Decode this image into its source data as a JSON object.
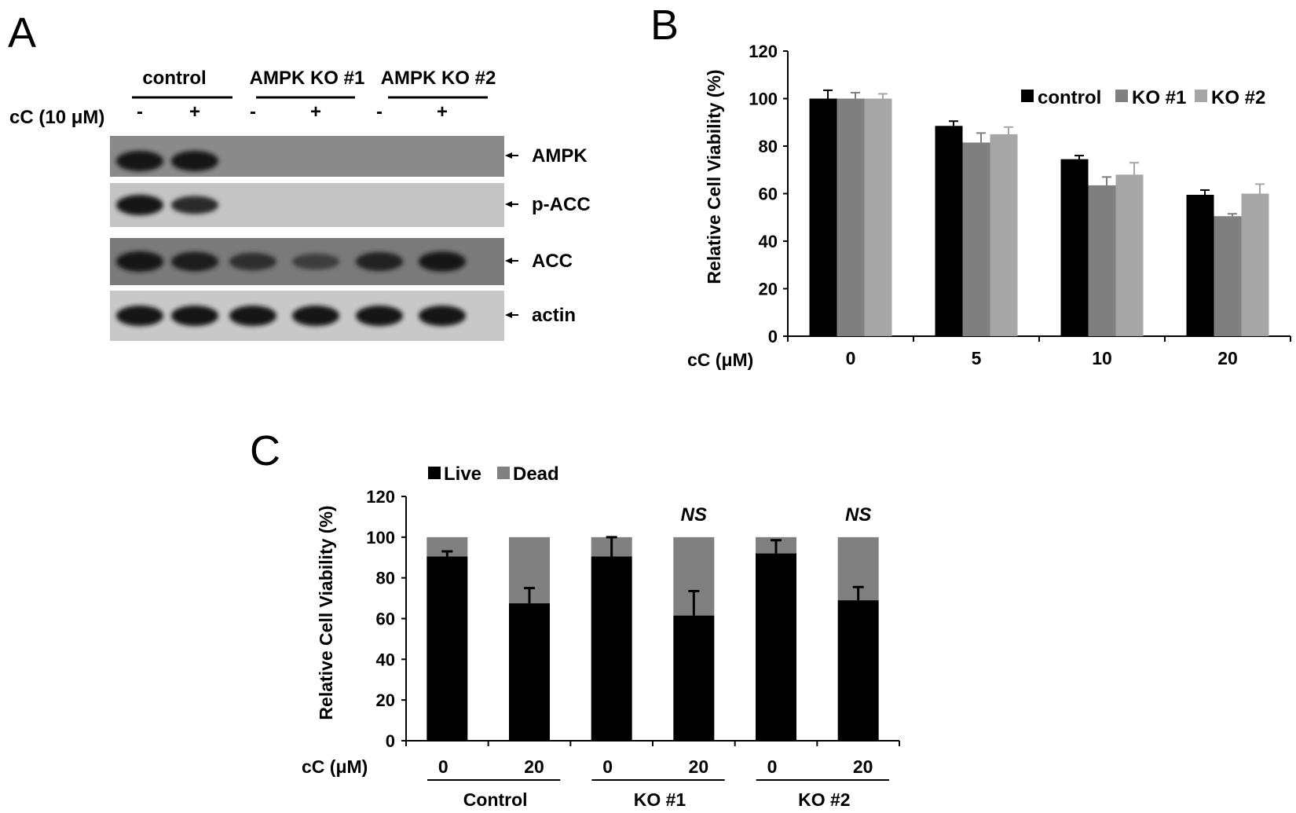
{
  "panels": {
    "a": "A",
    "b": "B",
    "c": "C"
  },
  "panel_a": {
    "groups": [
      "control",
      "AMPK KO #1",
      "AMPK KO #2"
    ],
    "treatment_label": "cC (10 μM)",
    "lane_signs": [
      "-",
      "+",
      "-",
      "+",
      "-",
      "+"
    ],
    "blots": [
      {
        "label": "AMPK",
        "bg": "#8a8a8a",
        "intensities": [
          1.0,
          1.0,
          0,
          0,
          0,
          0
        ]
      },
      {
        "label": "p-ACC",
        "bg": "#c4c4c4",
        "intensities": [
          1.0,
          0.75,
          0,
          0,
          0,
          0
        ]
      },
      {
        "label": "ACC",
        "bg": "#7a7a7a",
        "intensities": [
          1.0,
          0.9,
          0.7,
          0.55,
          0.85,
          0.95
        ]
      },
      {
        "label": "actin",
        "bg": "#c8c8c8",
        "intensities": [
          1.0,
          1.0,
          1.0,
          1.0,
          1.0,
          1.0
        ]
      }
    ]
  },
  "chart_data": [
    {
      "type": "bar",
      "categories": [
        "0",
        "5",
        "10",
        "20"
      ],
      "series": [
        {
          "name": "control",
          "color": "#000000",
          "values": [
            100,
            88.5,
            74.5,
            59.5
          ],
          "errors": [
            3.5,
            2,
            1.5,
            2
          ]
        },
        {
          "name": "KO #1",
          "color": "#7f7f7f",
          "values": [
            100,
            81.5,
            63.5,
            50.5
          ],
          "errors": [
            2.5,
            4,
            3.5,
            1
          ]
        },
        {
          "name": "KO #2",
          "color": "#a6a6a6",
          "values": [
            100,
            85,
            68,
            60
          ],
          "errors": [
            2,
            3,
            5,
            4
          ]
        }
      ],
      "ylabel": "Relative Cell Viability (%)",
      "xlabel": "cC (μM)",
      "ylim": [
        0,
        120
      ],
      "yticks": [
        0,
        20,
        40,
        60,
        80,
        100,
        120
      ],
      "legend": "top-right"
    },
    {
      "type": "bar",
      "stacked": true,
      "categories": [
        "0",
        "20",
        "0",
        "20",
        "0",
        "20"
      ],
      "groups": [
        "Control",
        "KO #1",
        "KO #2"
      ],
      "series": [
        {
          "name": "Live",
          "color": "#000000",
          "values": [
            90.5,
            67.5,
            90.5,
            61.5,
            92,
            69
          ],
          "errors": [
            2.5,
            7.5,
            9.5,
            12,
            6.5,
            6.5
          ]
        },
        {
          "name": "Dead",
          "color": "#808080",
          "values": [
            9.5,
            32.5,
            9.5,
            38.5,
            8,
            31
          ]
        }
      ],
      "annotations": [
        "",
        "",
        "",
        "NS",
        "",
        "NS"
      ],
      "ylabel": "Relative Cell Viability (%)",
      "xlabel": "cC (μM)",
      "ylim": [
        0,
        120
      ],
      "yticks": [
        0,
        20,
        40,
        60,
        80,
        100,
        120
      ],
      "legend": "top-left"
    }
  ]
}
